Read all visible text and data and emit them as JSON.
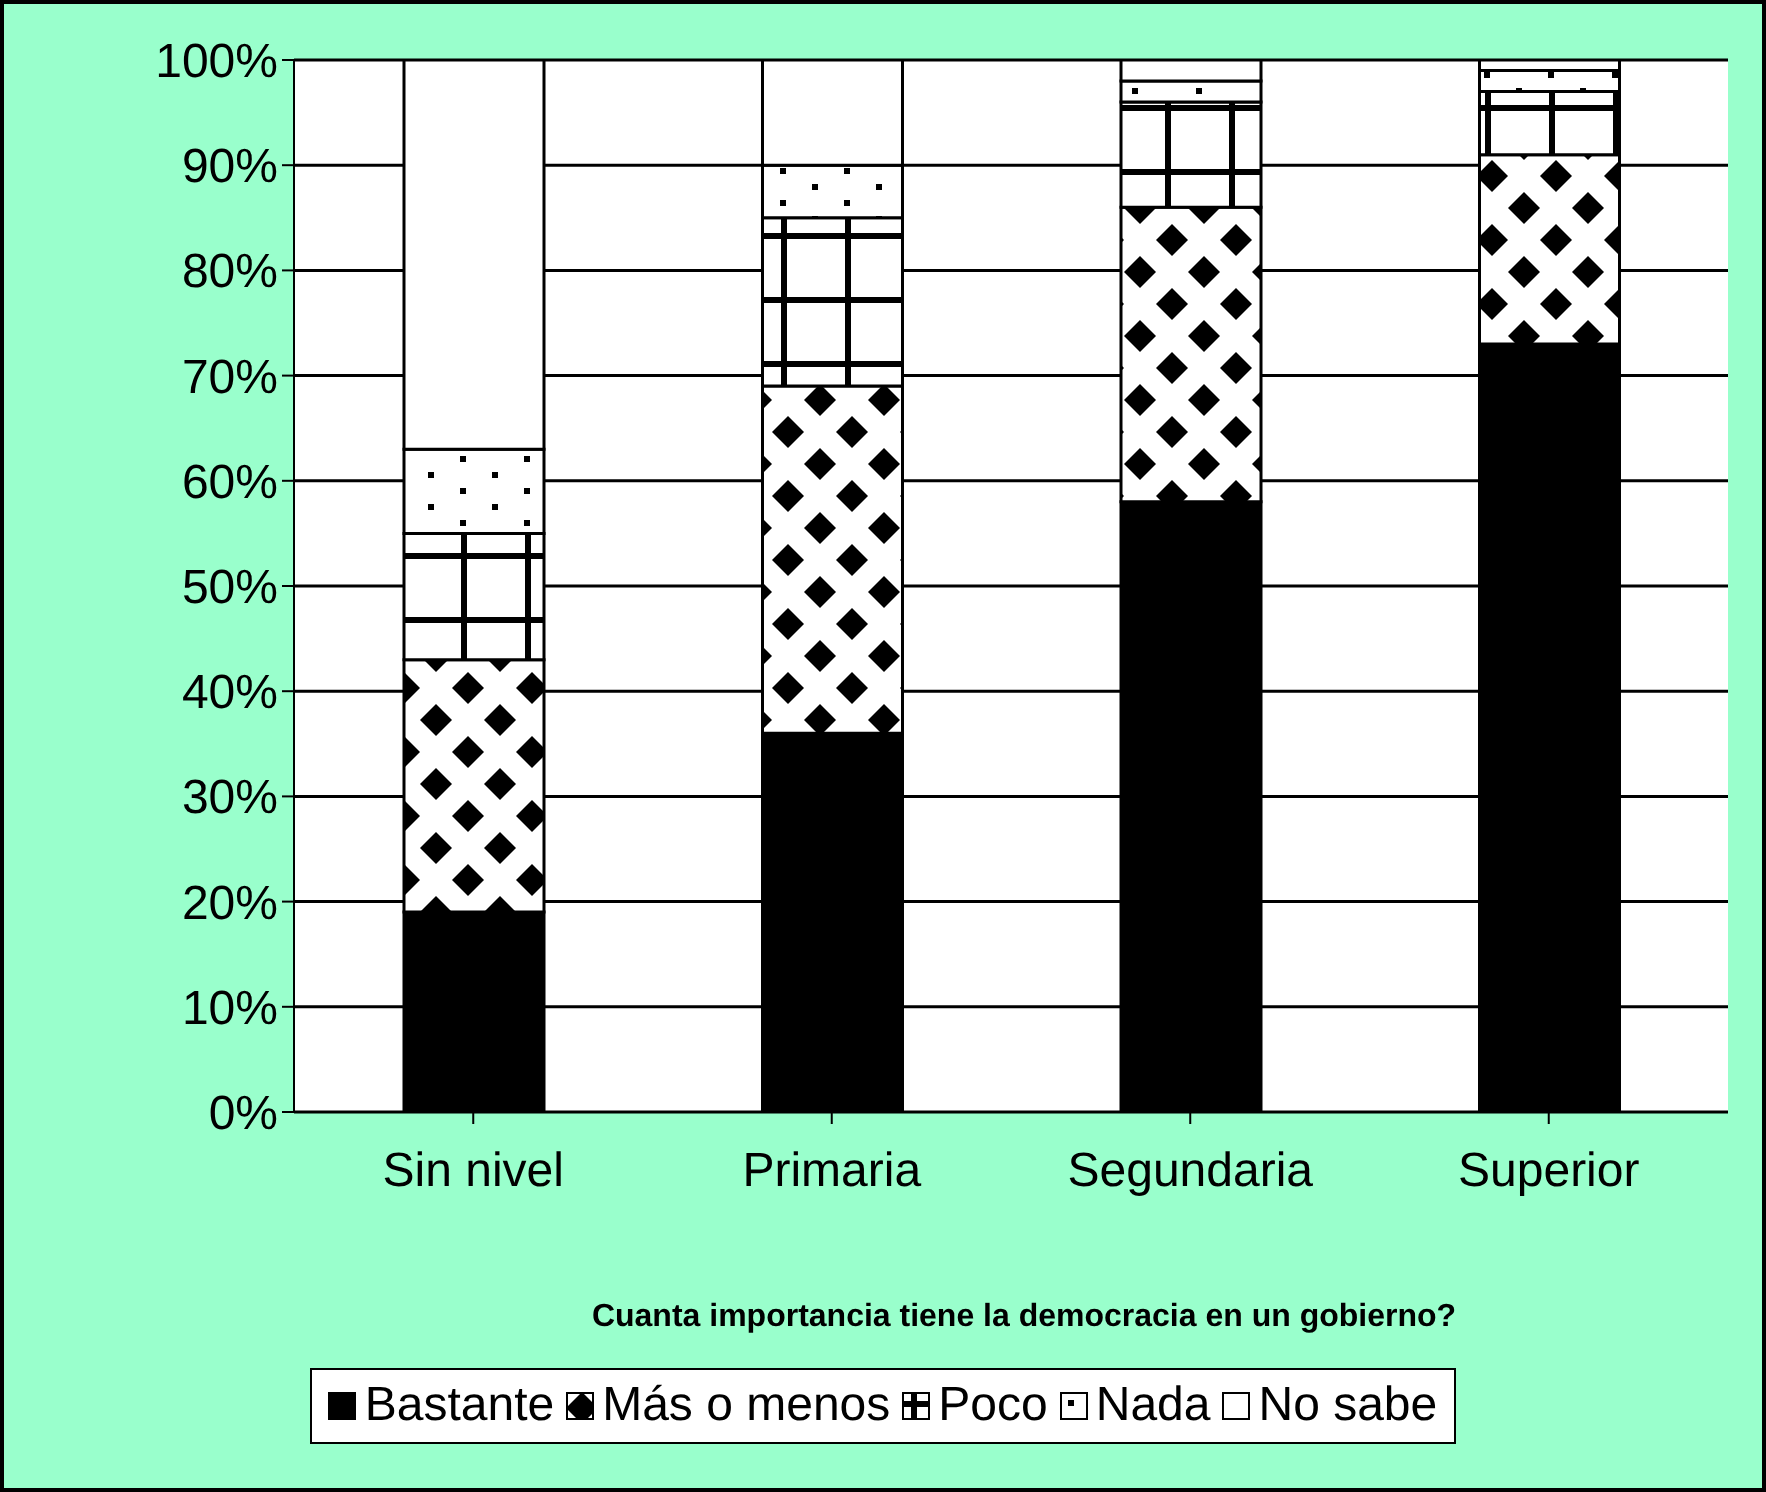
{
  "chart_data": {
    "type": "bar",
    "xlabel": "Cuanta importancia tiene la democracia en un gobierno?",
    "categories": [
      "Sin nivel",
      "Primaria",
      "Segundaria",
      "Superior"
    ],
    "series": [
      {
        "name": "Bastante",
        "color": "#000000",
        "values": [
          19,
          36,
          58,
          73
        ]
      },
      {
        "name": "Más o menos",
        "color": "#000000",
        "values": [
          24,
          33,
          28,
          18
        ]
      },
      {
        "name": "Poco",
        "color": "#000000",
        "values": [
          12,
          16,
          10,
          6
        ]
      },
      {
        "name": "Nada",
        "color": "#000000",
        "values": [
          8,
          5,
          2,
          2
        ]
      },
      {
        "name": "No sabe",
        "color": "#ffffff",
        "values": [
          37,
          10,
          2,
          1
        ]
      }
    ],
    "stacked": true,
    "ylim": [
      0,
      100
    ],
    "yticks": [
      {
        "value": 0,
        "label": "0%"
      },
      {
        "value": 10,
        "label": "10%"
      },
      {
        "value": 20,
        "label": "20%"
      },
      {
        "value": 30,
        "label": "30%"
      },
      {
        "value": 40,
        "label": "40%"
      },
      {
        "value": 50,
        "label": "50%"
      },
      {
        "value": 60,
        "label": "60%"
      },
      {
        "value": 70,
        "label": "70%"
      },
      {
        "value": 80,
        "label": "80%"
      },
      {
        "value": 90,
        "label": "90%"
      },
      {
        "value": 100,
        "label": "100%"
      }
    ],
    "grid": "y",
    "legend": "bottom"
  }
}
